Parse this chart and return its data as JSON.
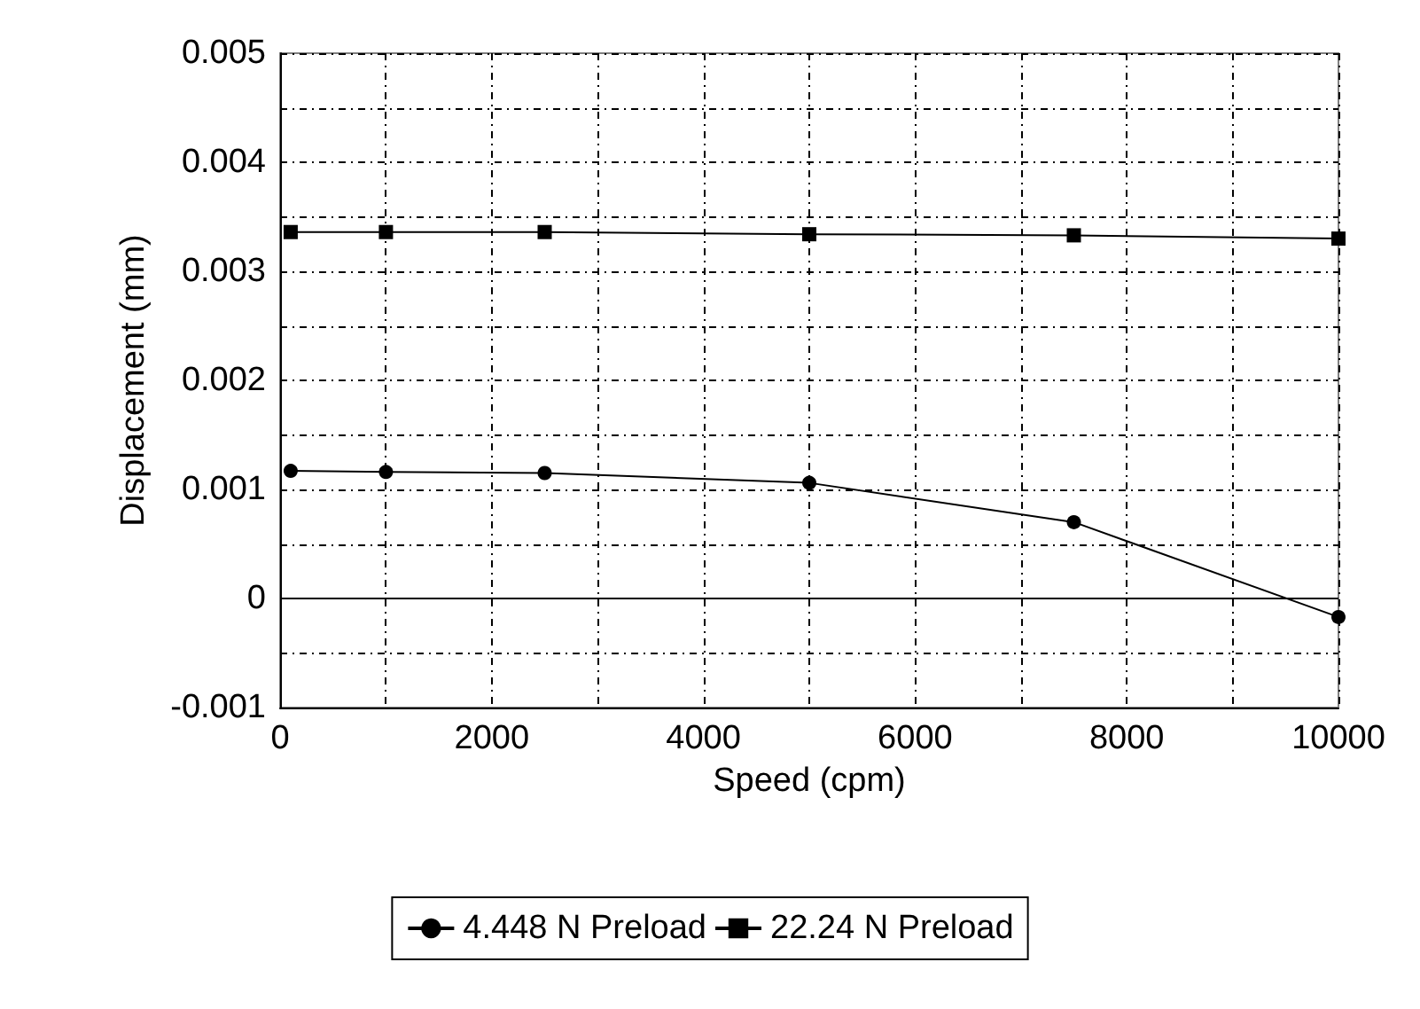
{
  "chart_data": {
    "type": "line",
    "xlabel": "Speed (cpm)",
    "ylabel": "Displacement (mm)",
    "x": [
      100,
      1000,
      2500,
      5000,
      7500,
      10000
    ],
    "series": [
      {
        "name": "4.448 N Preload",
        "color": "#000000",
        "marker": "circle",
        "values": [
          0.00117,
          0.00116,
          0.00115,
          0.00106,
          0.0007,
          -0.00017
        ]
      },
      {
        "name": "22.24 N Preload",
        "color": "#000000",
        "marker": "square",
        "values": [
          0.00336,
          0.00336,
          0.00336,
          0.00334,
          0.00333,
          0.0033
        ]
      }
    ],
    "xlim": [
      0,
      10000
    ],
    "xticks": [
      0,
      {
        "value": 1000,
        "label": null
      },
      2000,
      {
        "value": 3000,
        "label": null
      },
      4000,
      {
        "value": 5000,
        "label": null
      },
      6000,
      {
        "value": 7000,
        "label": null
      },
      8000,
      {
        "value": 9000,
        "label": null
      },
      10000
    ],
    "ylim": [
      -0.001,
      0.005
    ],
    "yticks": [
      -0.001,
      {
        "value": -0.0005,
        "label": null
      },
      0,
      {
        "value": 0.0005,
        "label": null
      },
      0.001,
      {
        "value": 0.0015,
        "label": null
      },
      0.002,
      {
        "value": 0.0025,
        "label": null
      },
      0.003,
      {
        "value": 0.0035,
        "label": null
      },
      0.004,
      {
        "value": 0.0045,
        "label": null
      },
      0.005
    ],
    "ref_lines": [
      {
        "axis": "y",
        "value": 0,
        "color": "#000000",
        "line_style": "solid"
      }
    ],
    "grid": true,
    "legend": "bottom",
    "line_style": "solid"
  }
}
